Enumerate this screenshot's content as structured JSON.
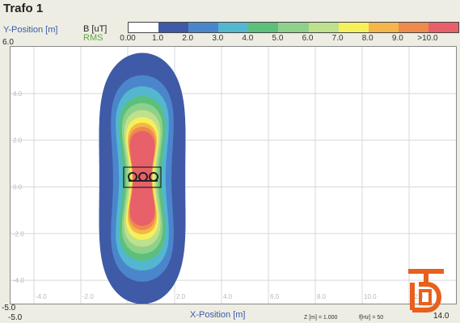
{
  "window": {
    "title": "Trafo 1"
  },
  "axes": {
    "ylabel": "Y-Position [m]",
    "xlabel": "X-Position [m]",
    "y_top": "6.0",
    "y_bottom": "-5.0",
    "x_left": "-5.0",
    "x_right": "14.0",
    "y_ticks": [
      "4.0",
      "2.0",
      "0.0",
      "-2.0",
      "-4.0"
    ],
    "x_ticks": [
      "-4.0",
      "-2.0",
      "0.0",
      "2.0",
      "4.0",
      "6.0",
      "8.0",
      "10.0",
      "12.0"
    ]
  },
  "scale": {
    "unit": "B [uT]",
    "mode": "RMS",
    "labels": [
      "0.00",
      "1.0",
      "2.0",
      "3.0",
      "4.0",
      "5.0",
      "6.0",
      "7.0",
      "8.0",
      "9.0",
      ">10.0"
    ],
    "colors": [
      "#ffffff",
      "#3f5aa6",
      "#4b86cc",
      "#52b7cf",
      "#5cbf7c",
      "#8fd18a",
      "#bfe08c",
      "#f6f05a",
      "#f4b64a",
      "#ee8a4c",
      "#e8606a"
    ]
  },
  "status": {
    "z_text": "Z [m] = 1.000",
    "f_text": "f[Hz] = 50"
  },
  "icons": {
    "logo": "company-logo"
  }
}
